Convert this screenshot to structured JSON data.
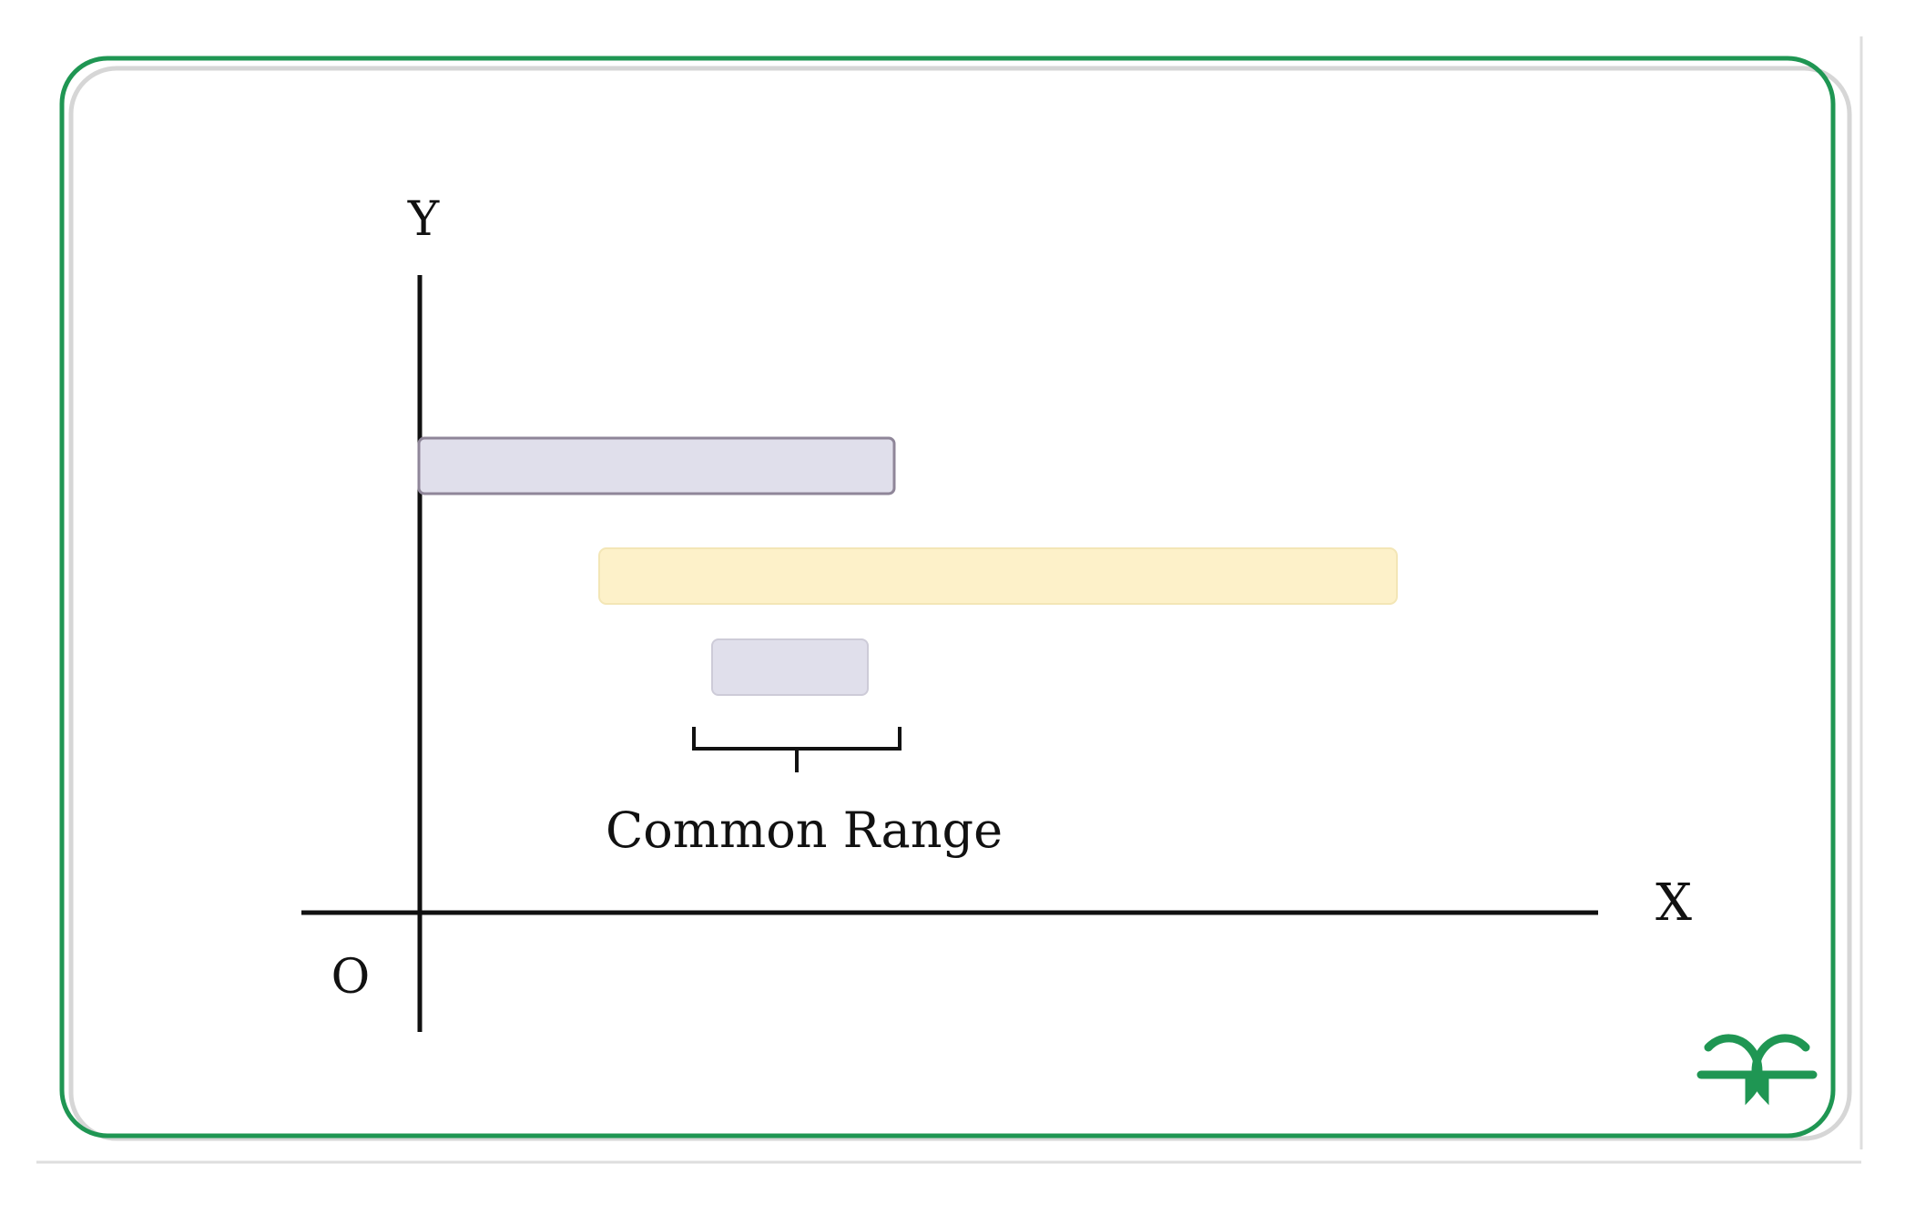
{
  "diagram": {
    "axis_labels": {
      "y": "Y",
      "x": "X",
      "origin": "O"
    },
    "annotation": "Common Range",
    "colors": {
      "card_border": "#1f9653",
      "card_shadow": "#d6d6d6",
      "axis": "#111111",
      "range_a_fill": "#e0dfeb",
      "range_a_stroke": "#8f8699",
      "range_b_fill": "#fdf1c9",
      "range_b_stroke": "#f3e6b6",
      "common_fill": "#e0dfeb",
      "common_stroke": "#cdcbd8",
      "logo": "#1f9653"
    },
    "logo_icon": "gfg-logo-icon"
  }
}
